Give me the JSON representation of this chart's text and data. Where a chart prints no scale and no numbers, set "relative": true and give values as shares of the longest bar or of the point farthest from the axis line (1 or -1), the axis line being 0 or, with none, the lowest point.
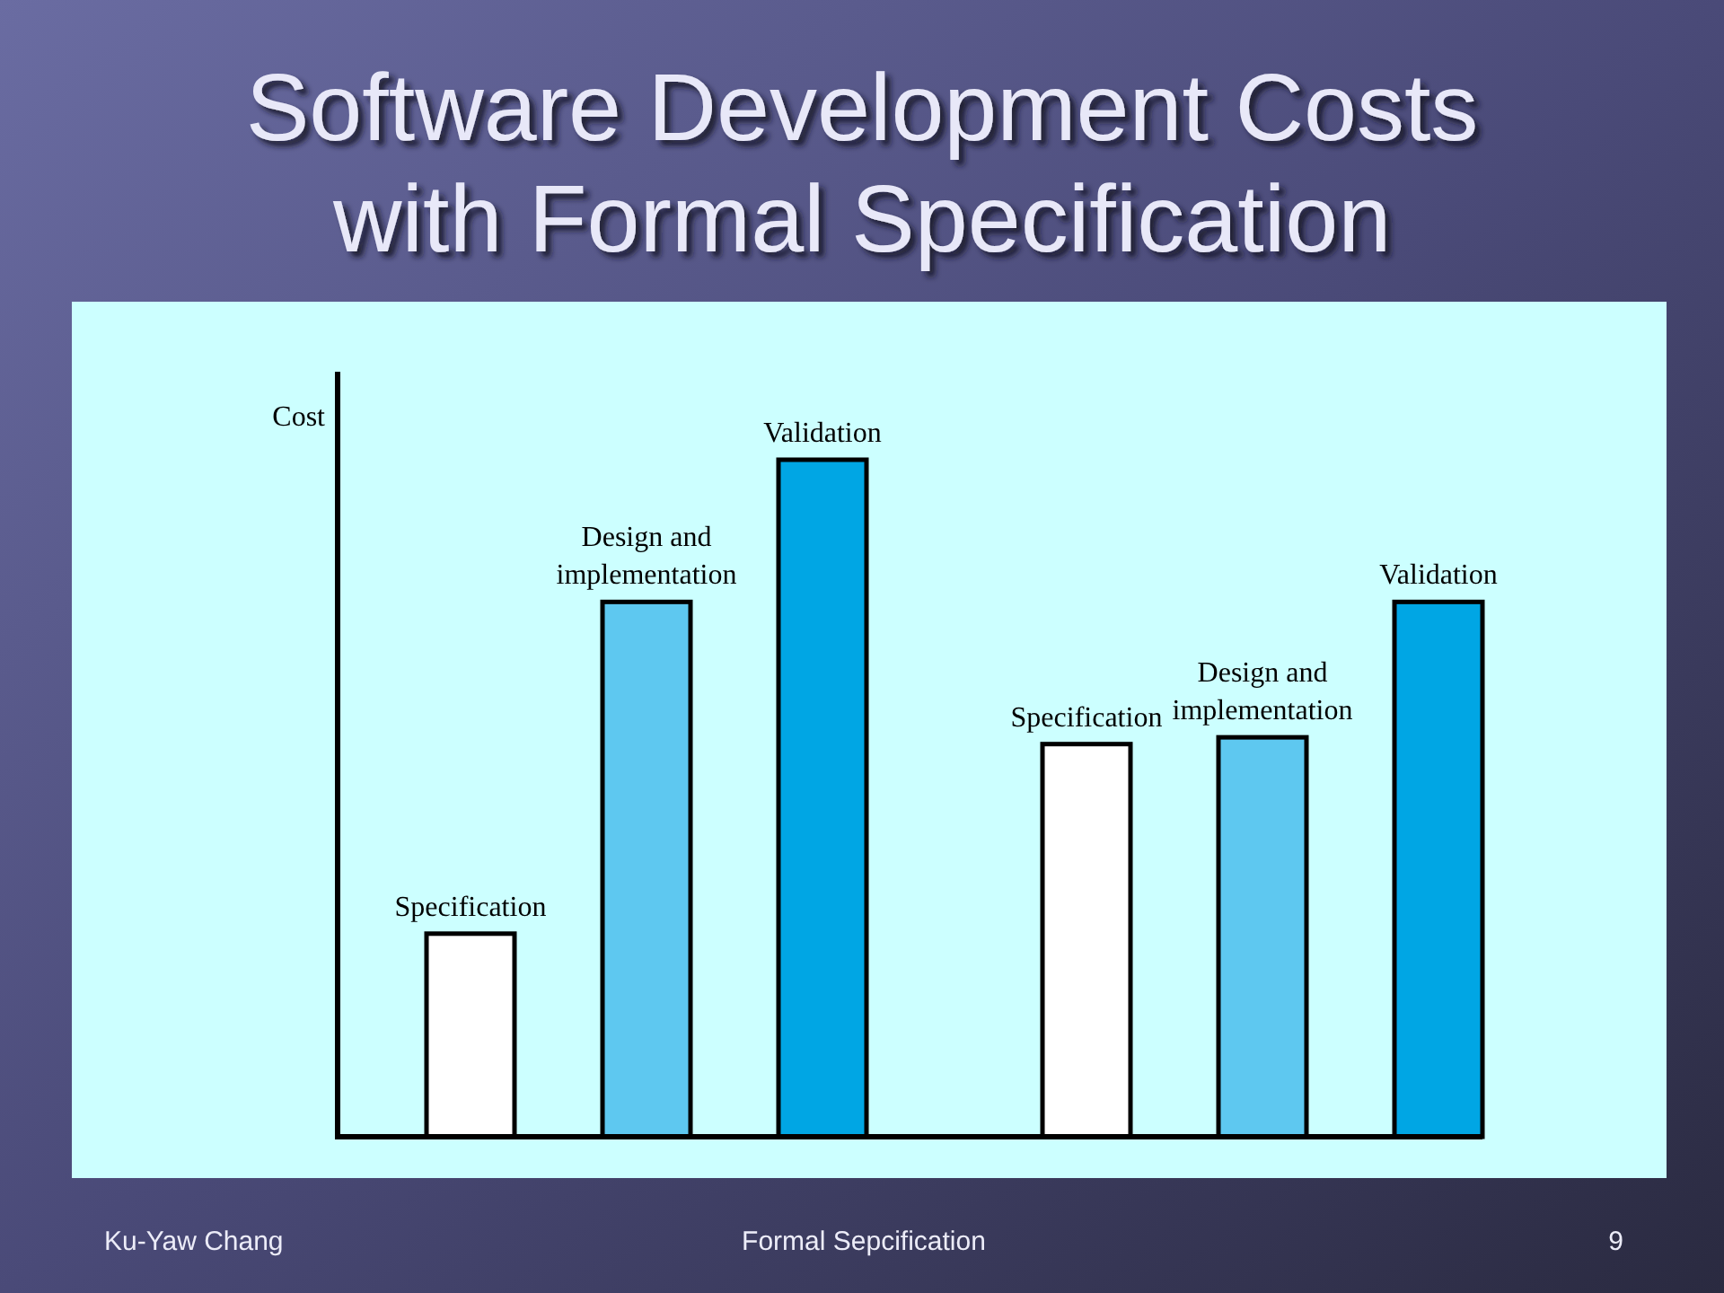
{
  "chart_data": {
    "type": "bar",
    "title": "Software Development Costs with Formal Specification",
    "ylabel": "Cost",
    "categories": [
      null,
      null
    ],
    "series": [
      {
        "name": "Specification",
        "color": "#ffffff",
        "values": [
          0.3,
          0.58
        ]
      },
      {
        "name": "Design and implementation",
        "color": "#5ec8f0",
        "values": [
          0.79,
          0.59
        ]
      },
      {
        "name": "Validation",
        "color": "#00a6e4",
        "values": [
          1,
          0.79
        ]
      }
    ],
    "relative": true,
    "annotations": [
      "Ku-Yaw Chang",
      "Formal Sepcification",
      "9"
    ]
  }
}
